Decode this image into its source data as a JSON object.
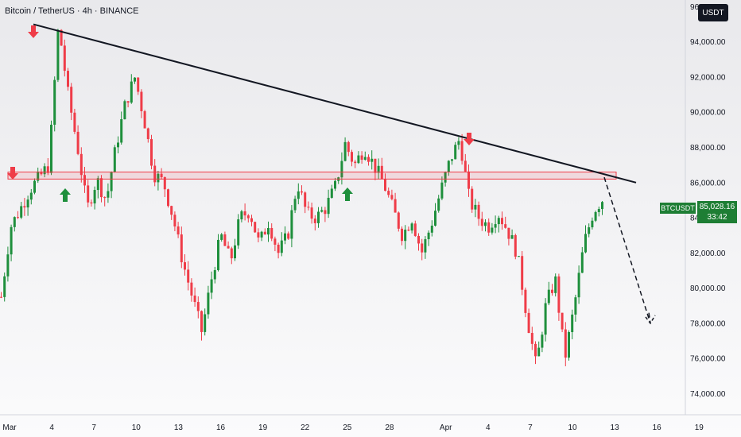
{
  "header": {
    "title": "Bitcoin / TetherUS · 4h · BINANCE",
    "currency": "USDT"
  },
  "price_tag": {
    "symbol": "BTCUSDT",
    "price": "85,028.16",
    "countdown": "33:42"
  },
  "colors": {
    "up": "#1e8f3c",
    "down": "#ef3c48",
    "trendline": "#131722",
    "zone": "#ef3c48"
  },
  "chart_data": {
    "type": "candlestick",
    "ylim": [
      72800,
      96200
    ],
    "y_ticks": [
      "74,000.00",
      "76,000.00",
      "78,000.00",
      "80,000.00",
      "82,000.00",
      "84,000.00",
      "86,000.00",
      "88,000.00",
      "90,000.00",
      "92,000.00",
      "94,000.00",
      "96,000.00"
    ],
    "x_ticks": [
      "Mar",
      "4",
      "7",
      "10",
      "13",
      "16",
      "19",
      "22",
      "25",
      "28",
      "Apr",
      "4",
      "7",
      "10",
      "13",
      "16",
      "19"
    ],
    "price_path": [
      [
        0,
        79500
      ],
      [
        1,
        83500
      ],
      [
        2,
        84500
      ],
      [
        3,
        85600
      ],
      [
        4,
        86300
      ],
      [
        5,
        87000
      ],
      [
        6,
        95000
      ],
      [
        7,
        91000
      ],
      [
        8,
        88000
      ],
      [
        9,
        84500
      ],
      [
        10,
        86200
      ],
      [
        11,
        85000
      ],
      [
        12,
        88000
      ],
      [
        13,
        90500
      ],
      [
        14,
        92000
      ],
      [
        15,
        89500
      ],
      [
        16,
        86500
      ],
      [
        17,
        86000
      ],
      [
        18,
        84000
      ],
      [
        19,
        81500
      ],
      [
        20,
        79500
      ],
      [
        21,
        77500
      ],
      [
        22,
        80500
      ],
      [
        23,
        83000
      ],
      [
        24,
        81500
      ],
      [
        25,
        84000
      ],
      [
        26,
        84400
      ],
      [
        27,
        82500
      ],
      [
        28,
        83800
      ],
      [
        29,
        82000
      ],
      [
        30,
        83000
      ],
      [
        31,
        86000
      ],
      [
        32,
        84200
      ],
      [
        33,
        84000
      ],
      [
        34,
        84600
      ],
      [
        35,
        85800
      ],
      [
        36,
        88200
      ],
      [
        37,
        87000
      ],
      [
        38,
        88000
      ],
      [
        39,
        87000
      ],
      [
        40,
        86000
      ],
      [
        41,
        84500
      ],
      [
        42,
        83000
      ],
      [
        43,
        84000
      ],
      [
        44,
        82000
      ],
      [
        45,
        83600
      ],
      [
        46,
        85500
      ],
      [
        47,
        87300
      ],
      [
        48,
        88500
      ],
      [
        49,
        85000
      ],
      [
        50,
        84000
      ],
      [
        51,
        83500
      ],
      [
        52,
        84300
      ],
      [
        53,
        83300
      ],
      [
        54,
        82000
      ],
      [
        55,
        78500
      ],
      [
        56,
        75500
      ],
      [
        57,
        79000
      ],
      [
        58,
        80500
      ],
      [
        59,
        76000
      ],
      [
        60,
        79000
      ],
      [
        61,
        82500
      ],
      [
        62,
        84400
      ],
      [
        63,
        85100
      ]
    ],
    "trendline": {
      "from": [
        "Mar 1",
        95000
      ],
      "to": [
        "Apr 14",
        86000
      ]
    },
    "resistance_zone": [
      86200,
      86600
    ],
    "projection": {
      "from": 86300,
      "to": 78000
    },
    "annotations": {
      "down_arrows": 3,
      "up_arrows": 2
    }
  }
}
